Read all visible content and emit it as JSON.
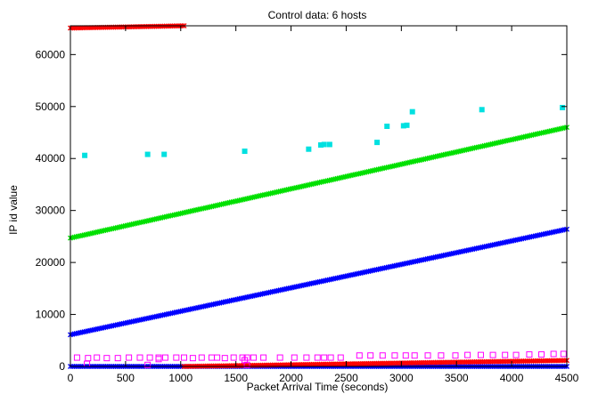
{
  "chart_data": {
    "type": "scatter",
    "title": "Control data:  6 hosts",
    "xlabel": "Packet Arrival Time (seconds)",
    "ylabel": "IP id value",
    "xlim": [
      0,
      4500
    ],
    "ylim": [
      0,
      65535
    ],
    "x_ticks": [
      0,
      500,
      1000,
      1500,
      2000,
      2500,
      3000,
      3500,
      4000,
      4500
    ],
    "y_ticks": [
      0,
      10000,
      20000,
      30000,
      40000,
      50000,
      60000
    ],
    "grid": false,
    "legend": "none",
    "series": [
      {
        "color": "#00e000",
        "marker": "x",
        "kind": "line",
        "points": [
          [
            0,
            24700
          ],
          [
            4500,
            46000
          ]
        ]
      },
      {
        "color": "#0000ff",
        "marker": "x",
        "kind": "line",
        "points": [
          [
            0,
            6100
          ],
          [
            4500,
            26400
          ]
        ]
      },
      {
        "color": "#0000ff",
        "marker": "x",
        "kind": "line",
        "points": [
          [
            0,
            0
          ],
          [
            4500,
            0
          ]
        ]
      },
      {
        "color": "#ff0000",
        "marker": "x",
        "kind": "line",
        "points": [
          [
            0,
            65100
          ],
          [
            1030,
            65535
          ]
        ]
      },
      {
        "color": "#ff0000",
        "marker": "x",
        "kind": "line",
        "points": [
          [
            1030,
            0
          ],
          [
            4500,
            1150
          ]
        ]
      },
      {
        "color": "#00e0e0",
        "marker": "filled-square",
        "kind": "scatter",
        "points": [
          [
            130,
            40600
          ],
          [
            700,
            40800
          ],
          [
            850,
            40800
          ],
          [
            1580,
            41400
          ],
          [
            2160,
            41800
          ],
          [
            2270,
            42600
          ],
          [
            2300,
            42700
          ],
          [
            2350,
            42700
          ],
          [
            2780,
            43100
          ],
          [
            2870,
            46200
          ],
          [
            3020,
            46300
          ],
          [
            3050,
            46400
          ],
          [
            3100,
            49000
          ],
          [
            3730,
            49400
          ],
          [
            4460,
            49800
          ]
        ]
      },
      {
        "color": "#ff00ff",
        "marker": "open-square",
        "kind": "scatter",
        "points": [
          [
            60,
            1700
          ],
          [
            160,
            1600
          ],
          [
            240,
            1700
          ],
          [
            330,
            1600
          ],
          [
            430,
            1600
          ],
          [
            530,
            1700
          ],
          [
            630,
            1700
          ],
          [
            720,
            1700
          ],
          [
            800,
            1700
          ],
          [
            860,
            1700
          ],
          [
            960,
            1700
          ],
          [
            1030,
            1700
          ],
          [
            1110,
            1600
          ],
          [
            1190,
            1700
          ],
          [
            1280,
            1700
          ],
          [
            1330,
            1700
          ],
          [
            1400,
            1600
          ],
          [
            1480,
            1700
          ],
          [
            1560,
            1700
          ],
          [
            1600,
            1700
          ],
          [
            1660,
            1700
          ],
          [
            1750,
            1700
          ],
          [
            1900,
            1700
          ],
          [
            2030,
            1700
          ],
          [
            2140,
            1700
          ],
          [
            2240,
            1700
          ],
          [
            2300,
            1700
          ],
          [
            2360,
            1700
          ],
          [
            2450,
            1700
          ],
          [
            2620,
            2100
          ],
          [
            2720,
            2100
          ],
          [
            2830,
            2100
          ],
          [
            2940,
            2100
          ],
          [
            3040,
            2100
          ],
          [
            3120,
            2100
          ],
          [
            3240,
            2100
          ],
          [
            3360,
            2100
          ],
          [
            3490,
            2100
          ],
          [
            3600,
            2200
          ],
          [
            3720,
            2200
          ],
          [
            3830,
            2200
          ],
          [
            3940,
            2200
          ],
          [
            4040,
            2200
          ],
          [
            4160,
            2300
          ],
          [
            4270,
            2300
          ],
          [
            4380,
            2400
          ],
          [
            4470,
            2400
          ],
          [
            150,
            500
          ],
          [
            700,
            300
          ],
          [
            800,
            1400
          ],
          [
            1580,
            1200
          ],
          [
            1600,
            300
          ]
        ]
      }
    ]
  }
}
